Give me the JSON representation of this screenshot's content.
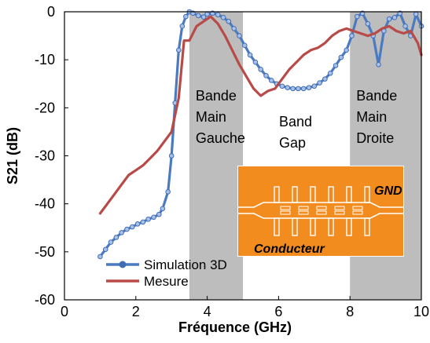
{
  "chart_data": {
    "type": "line",
    "title": "",
    "xlabel": "Fréquence (GHz)",
    "ylabel": "S21 (dB)",
    "xlim": [
      0,
      10
    ],
    "ylim": [
      -60,
      0
    ],
    "xticks": [
      0,
      2,
      4,
      6,
      8,
      10
    ],
    "yticks": [
      0,
      -10,
      -20,
      -30,
      -40,
      -50,
      -60
    ],
    "grid": false,
    "legend_position": "bottom-left",
    "shaded_bands": [
      {
        "x_start": 3.5,
        "x_end": 5.0,
        "label": [
          "Bande",
          "Main",
          "Gauche"
        ]
      },
      {
        "x_start": 8.0,
        "x_end": 10.0,
        "label": [
          "Bande",
          "Main",
          "Droite"
        ]
      }
    ],
    "annotations": [
      {
        "text": [
          "Band",
          "Gap"
        ],
        "x": 6.0,
        "y": -23
      }
    ],
    "inset": {
      "labels": {
        "top_right": "GND",
        "bottom": "Conducteur"
      },
      "colors": {
        "substrate": "#F28C1E",
        "conductor": "#FFFFFF"
      }
    },
    "series": [
      {
        "name": "Simulation 3D",
        "color": "#4A7AC0",
        "marker": "circle",
        "x": [
          1.0,
          1.15,
          1.3,
          1.45,
          1.6,
          1.75,
          1.9,
          2.05,
          2.2,
          2.35,
          2.5,
          2.65,
          2.75,
          2.9,
          3.0,
          3.1,
          3.2,
          3.3,
          3.4,
          3.5,
          3.6,
          3.75,
          3.9,
          4.0,
          4.15,
          4.3,
          4.45,
          4.6,
          4.75,
          4.9,
          5.05,
          5.2,
          5.35,
          5.5,
          5.65,
          5.8,
          5.95,
          6.1,
          6.25,
          6.4,
          6.55,
          6.7,
          6.85,
          7.0,
          7.15,
          7.3,
          7.45,
          7.6,
          7.75,
          7.9,
          8.05,
          8.2,
          8.35,
          8.5,
          8.65,
          8.8,
          8.95,
          9.1,
          9.25,
          9.4,
          9.55,
          9.7,
          9.85,
          10.0
        ],
        "values": [
          -51,
          -49.5,
          -48,
          -47,
          -46,
          -45.3,
          -44.8,
          -44.2,
          -43.8,
          -43.2,
          -42.8,
          -42.2,
          -41,
          -37.5,
          -30,
          -19,
          -8,
          -3,
          -1,
          0,
          -0.3,
          -0.8,
          -1.1,
          -0.5,
          -0.3,
          -0.6,
          -1.2,
          -2,
          -3.5,
          -5,
          -7,
          -9,
          -10.5,
          -12,
          -13.3,
          -14.3,
          -15,
          -15.5,
          -15.8,
          -16,
          -16,
          -16,
          -15.8,
          -15.5,
          -14.8,
          -14,
          -12.8,
          -11.2,
          -9.5,
          -8,
          -5,
          -1,
          -0.3,
          -2.5,
          -5,
          -11,
          -4,
          -1.5,
          -1.2,
          -0.3,
          -3,
          -5,
          -0.5,
          -3
        ]
      },
      {
        "name": "Mesure",
        "color": "#B84A48",
        "marker": "none",
        "x": [
          1.0,
          1.2,
          1.4,
          1.6,
          1.8,
          2.0,
          2.2,
          2.4,
          2.6,
          2.8,
          3.0,
          3.2,
          3.35,
          3.5,
          3.7,
          3.9,
          4.1,
          4.3,
          4.5,
          4.7,
          4.9,
          5.1,
          5.3,
          5.5,
          5.7,
          5.9,
          6.1,
          6.3,
          6.5,
          6.7,
          6.9,
          7.1,
          7.3,
          7.5,
          7.7,
          7.9,
          8.1,
          8.3,
          8.5,
          8.7,
          8.9,
          9.1,
          9.3,
          9.5,
          9.7,
          9.9,
          10.0
        ],
        "values": [
          -42,
          -40,
          -38,
          -36,
          -34,
          -33,
          -32,
          -30.5,
          -29,
          -27,
          -25,
          -18,
          -6,
          -6,
          -3,
          -2,
          -1,
          -2.5,
          -5,
          -8,
          -11,
          -13.5,
          -16,
          -17.5,
          -16.5,
          -16,
          -14,
          -12,
          -10.5,
          -9,
          -8,
          -7.5,
          -6.5,
          -5,
          -4,
          -3.5,
          -4,
          -4.5,
          -5,
          -4.5,
          -3.5,
          -3,
          -4,
          -4.5,
          -4,
          -6.5,
          -9
        ]
      }
    ]
  }
}
